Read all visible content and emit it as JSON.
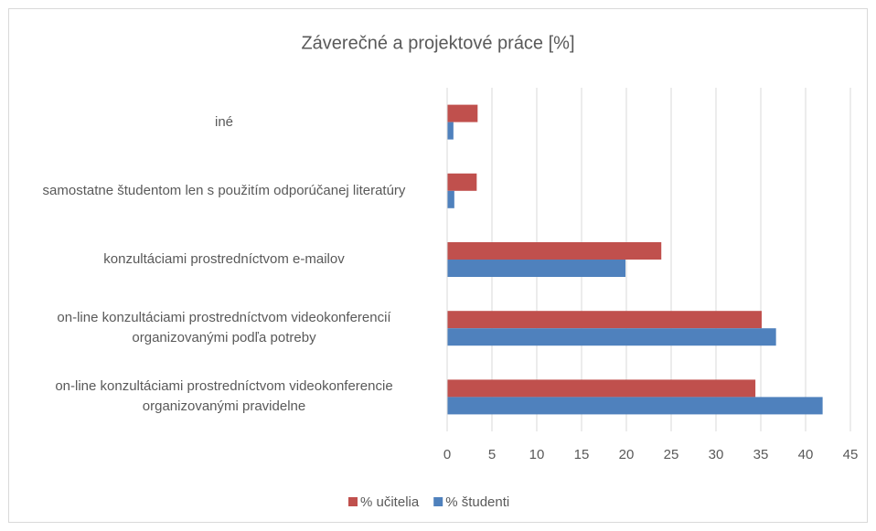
{
  "chart_data": {
    "type": "hbar",
    "title": "Záverečné a projektové práce [%]",
    "categories": [
      "iné",
      "samostatne študentom len s použitím odporúčanej literatúry",
      "konzultáciami prostredníctvom e-mailov",
      "on-line konzultáciami prostredníctvom videokonferencií organizovanými podľa potreby",
      "on-line konzultáciami prostredníctvom videokonferencie organizovanými pravidelne"
    ],
    "series": [
      {
        "name": "% učitelia",
        "color": "#c0504d",
        "values": [
          3.4,
          3.3,
          23.9,
          35.1,
          34.4
        ]
      },
      {
        "name": "% študenti",
        "color": "#4f81bd",
        "values": [
          0.7,
          0.8,
          19.9,
          36.7,
          41.9
        ]
      }
    ],
    "xlim": [
      0,
      45
    ],
    "xticks": [
      0,
      5,
      10,
      15,
      20,
      25,
      30,
      35,
      40,
      45
    ],
    "grid": true,
    "legend": "bottom"
  }
}
